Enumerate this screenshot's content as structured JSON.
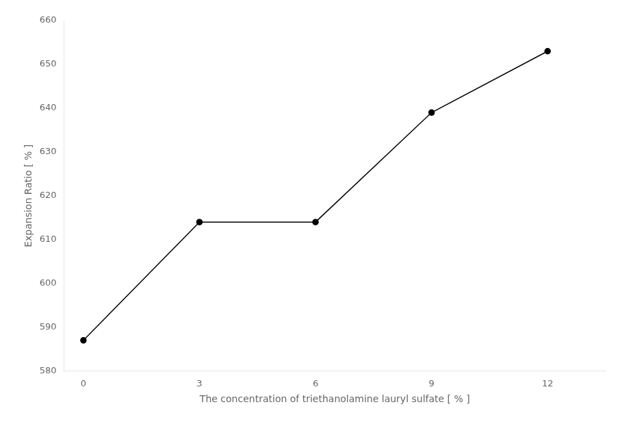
{
  "chart_data": {
    "type": "line",
    "x": [
      0,
      3,
      6,
      9,
      12
    ],
    "values": [
      587,
      614,
      614,
      639,
      653
    ],
    "xlabel": "The concentration of triethanolamine lauryl sulfate [ % ]",
    "ylabel": "Expansion Ratio [ % ]",
    "xlim": [
      -0.5,
      13.5
    ],
    "ylim": [
      580,
      660
    ],
    "xticks": [
      0,
      3,
      6,
      9,
      12
    ],
    "yticks": [
      580,
      590,
      600,
      610,
      620,
      630,
      640,
      650,
      660
    ],
    "color": "#000000",
    "marker": "circle",
    "grid": false
  }
}
